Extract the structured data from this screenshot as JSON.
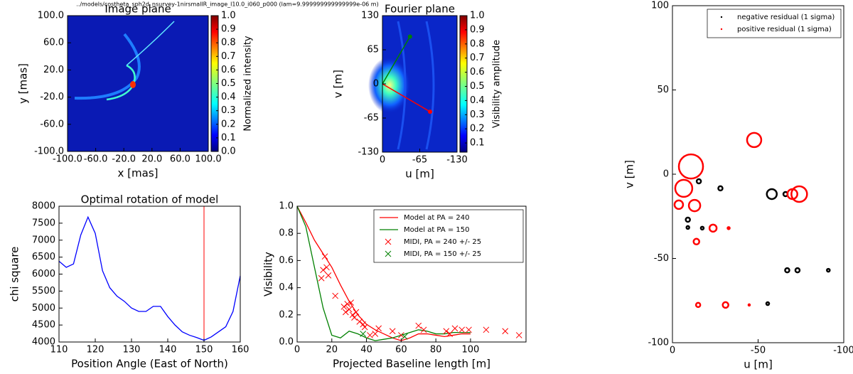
{
  "figure_title": "../models/costheta_sph2d_nsurvey-1nirsmallR_image_l10.0_i060_p000 (lam=9.999999999999999e-06 m)",
  "chart_data": [
    {
      "type": "heatmap",
      "title": "Image plane",
      "x_label": "x [mas]",
      "y_label": "y [mas]",
      "xlim": [
        -100,
        100
      ],
      "ylim": [
        -100,
        100
      ],
      "xticks": [
        {
          "value": -100,
          "label": "-100.0"
        },
        {
          "value": -60,
          "label": "-60.0"
        },
        {
          "value": -20,
          "label": "-20.0"
        },
        {
          "value": 20,
          "label": "20.0"
        },
        {
          "value": 60,
          "label": "60.0"
        },
        {
          "value": 100,
          "label": "100.0"
        }
      ],
      "yticks": [
        {
          "value": -100,
          "label": "-100.0"
        },
        {
          "value": -60,
          "label": "-60.0"
        },
        {
          "value": -20,
          "label": "-20.0"
        },
        {
          "value": 20,
          "label": "20.0"
        },
        {
          "value": 60,
          "label": "60.0"
        },
        {
          "value": 100,
          "label": "100.0"
        }
      ],
      "colorbar": {
        "label": "Normalized intensity",
        "lim": [
          0,
          1
        ],
        "ticks": [
          {
            "value": 0,
            "label": "0.0"
          },
          0.1,
          0.2,
          0.3,
          0.4,
          0.5,
          0.6,
          0.7,
          0.8,
          0.9,
          {
            "value": 1,
            "label": "1.0"
          }
        ]
      }
    },
    {
      "type": "heatmap",
      "title": "Fourier plane",
      "x_label": "u [m]",
      "y_label": "v [m]",
      "xlim": [
        0,
        -130
      ],
      "ylim": [
        -130,
        130
      ],
      "xticks": [
        0,
        -65,
        -130
      ],
      "yticks": [
        130,
        65,
        0,
        -65,
        -130
      ],
      "colorbar": {
        "label": "Visibility amplitude",
        "lim": [
          0.035,
          1
        ],
        "ticks": [
          0.1,
          0.2,
          0.3,
          0.4,
          0.5,
          0.6,
          0.7,
          0.8,
          0.9,
          {
            "value": 1,
            "label": "1.0"
          }
        ]
      },
      "lines": [
        {
          "color": "#008000",
          "x": [
            0,
            -48
          ],
          "y": [
            0,
            90
          ]
        },
        {
          "color": "#ff0000",
          "x": [
            0,
            -83
          ],
          "y": [
            0,
            -53
          ]
        }
      ]
    },
    {
      "type": "line",
      "title": "Optimal rotation of model",
      "x_label": "Position Angle (East of North)",
      "y_label": "chi square",
      "xlim": [
        110,
        160
      ],
      "ylim": [
        4000,
        8000
      ],
      "xticks": [
        110,
        120,
        130,
        140,
        150,
        160
      ],
      "yticks": [
        4000,
        4500,
        5000,
        5500,
        6000,
        6500,
        7000,
        7500,
        8000
      ],
      "series": [
        {
          "color": "#0000ff",
          "kind": "line",
          "x": [
            110,
            112,
            114,
            116,
            118,
            120,
            122,
            124,
            126,
            128,
            130,
            132,
            134,
            136,
            138,
            140,
            142,
            144,
            146,
            148,
            150,
            152,
            154,
            156,
            158,
            160
          ],
          "values": [
            6380,
            6200,
            6300,
            7150,
            7680,
            7200,
            6100,
            5600,
            5350,
            5200,
            5000,
            4900,
            4900,
            5050,
            5050,
            4750,
            4500,
            4300,
            4200,
            4130,
            4050,
            4150,
            4300,
            4450,
            4900,
            5950
          ]
        }
      ],
      "vline": {
        "x": 150,
        "color": "#ff0000"
      }
    },
    {
      "type": "line",
      "x_label": "Projected Baseline length [m]",
      "y_label": "Visibility",
      "xlim": [
        0,
        132
      ],
      "ylim": [
        0,
        1
      ],
      "xticks": [
        0,
        20,
        40,
        60,
        80,
        100
      ],
      "yticks": [
        {
          "value": 0,
          "label": "0.0"
        },
        0.2,
        0.4,
        0.6,
        0.8,
        {
          "value": 1,
          "label": "1.0"
        }
      ],
      "legend": "upper right",
      "series": [
        {
          "name": "Model at PA = 240",
          "color": "#ff0000",
          "kind": "line",
          "x": [
            0,
            5,
            10,
            15,
            20,
            25,
            30,
            35,
            40,
            45,
            50,
            55,
            60,
            65,
            70,
            75,
            80,
            85,
            90,
            95,
            100
          ],
          "values": [
            1,
            0.88,
            0.75,
            0.65,
            0.55,
            0.42,
            0.3,
            0.2,
            0.13,
            0.09,
            0.06,
            0.03,
            0.01,
            0.03,
            0.06,
            0.06,
            0.05,
            0.04,
            0.05,
            0.06,
            0.06
          ]
        },
        {
          "name": "Model at PA = 150",
          "color": "#008000",
          "kind": "line",
          "x": [
            0,
            5,
            10,
            15,
            20,
            25,
            30,
            35,
            40,
            45,
            50,
            55,
            60,
            65,
            70,
            75,
            80,
            85,
            90,
            95,
            100
          ],
          "values": [
            1,
            0.85,
            0.55,
            0.25,
            0.05,
            0.03,
            0.08,
            0.06,
            0.03,
            0.01,
            0.02,
            0.03,
            0.05,
            0.07,
            0.09,
            0.08,
            0.06,
            0.06,
            0.07,
            0.07,
            0.07
          ]
        },
        {
          "name": "MIDI, PA = 240 +/- 25",
          "color": "#ff0000",
          "kind": "marker",
          "x": [
            14,
            15,
            16,
            17,
            18,
            22,
            27,
            28,
            29,
            30,
            31,
            32,
            33,
            34,
            36,
            38,
            39,
            42,
            45,
            47,
            55,
            60,
            70,
            73,
            86,
            88,
            91,
            95,
            99,
            109,
            120,
            128
          ],
          "values": [
            0.47,
            0.53,
            0.63,
            0.55,
            0.49,
            0.34,
            0.26,
            0.22,
            0.28,
            0.24,
            0.29,
            0.2,
            0.18,
            0.22,
            0.15,
            0.13,
            0.11,
            0.05,
            0.06,
            0.1,
            0.08,
            0.05,
            0.12,
            0.09,
            0.08,
            0.06,
            0.1,
            0.09,
            0.09,
            0.09,
            0.08,
            0.05
          ]
        },
        {
          "name": "MIDI, PA = 150 +/- 25",
          "color": "#008000",
          "kind": "marker",
          "x": [
            38,
            62
          ],
          "values": [
            0.06,
            0.04
          ]
        }
      ]
    },
    {
      "type": "bubble",
      "x_label": "u [m]",
      "y_label": "v [m]",
      "xlim": [
        0,
        -100
      ],
      "ylim": [
        -100,
        100
      ],
      "xticks": [
        0,
        -50,
        -100
      ],
      "yticks": [
        -100,
        -50,
        0,
        50,
        100
      ],
      "legend": "upper right",
      "series": [
        {
          "name": "negative residual (1 sigma)",
          "color": "#000000",
          "x": [
            -15.4,
            -28,
            -58,
            -66,
            -9,
            -9,
            -17.4,
            -67,
            -73,
            -91,
            -55.6
          ],
          "values": [
            -4.2,
            -8.4,
            -11.8,
            -11.8,
            -27,
            -31.6,
            -32,
            -57,
            -57,
            -57,
            -76.8
          ],
          "sizes": [
            3,
            3,
            7,
            3,
            3,
            2,
            2,
            3,
            3,
            2,
            2
          ]
        },
        {
          "name": "positive residual (1 sigma)",
          "color": "#ff0000",
          "x": [
            -10.8,
            -6.6,
            -47.7,
            -12.9,
            -3.7,
            -70,
            -74,
            -23.7,
            -32.8,
            -14,
            -15,
            -31,
            -44.8
          ],
          "values": [
            4.6,
            -8.4,
            20.3,
            -18.6,
            -18.1,
            -11.8,
            -11.8,
            -32,
            -32,
            -40,
            -77.6,
            -77.6,
            -77.6
          ],
          "sizes": [
            17,
            12,
            10,
            8,
            6,
            7,
            11,
            5,
            1.5,
            4,
            3,
            4,
            1
          ]
        }
      ]
    }
  ]
}
